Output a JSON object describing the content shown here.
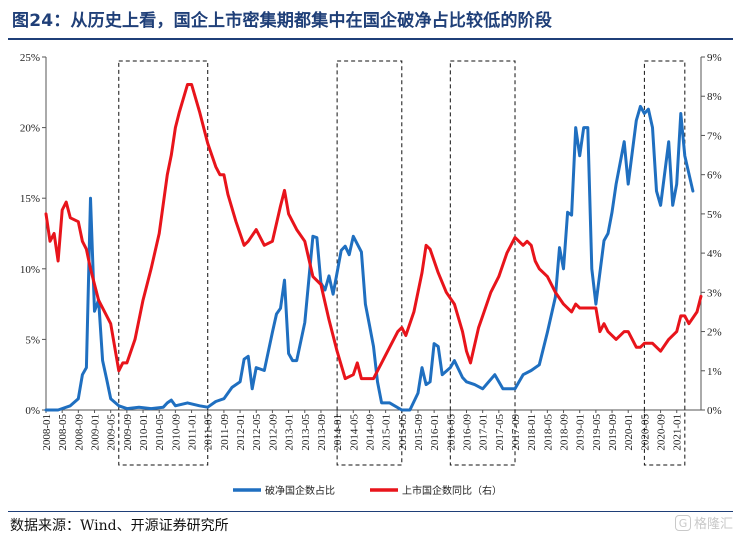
{
  "figure": {
    "title": "图24：从历史上看，国企上市密集期都集中在国企破净占比较低的阶段",
    "source": "数据来源：Wind、开源证券研究所",
    "watermark": "格隆汇",
    "watermark_icon": "g-logo-icon"
  },
  "colors": {
    "blue": "#1f6fc0",
    "red": "#e8141b",
    "axis": "#555555"
  },
  "chart_data": {
    "type": "line",
    "x_tick_labels": [
      "2008-01",
      "2008-05",
      "2008-09",
      "2009-01",
      "2009-05",
      "2009-09",
      "2010-01",
      "2010-05",
      "2010-09",
      "2011-01",
      "2011-05",
      "2011-09",
      "2012-01",
      "2012-05",
      "2012-09",
      "2013-01",
      "2013-05",
      "2013-09",
      "2014-01",
      "2014-05",
      "2014-09",
      "2015-01",
      "2015-05",
      "2015-09",
      "2016-01",
      "2016-05",
      "2016-09",
      "2017-01",
      "2017-05",
      "2017-09",
      "2018-01",
      "2018-05",
      "2018-09",
      "2019-01",
      "2019-05",
      "2019-09",
      "2020-01",
      "2020-05",
      "2020-09",
      "2021-01"
    ],
    "y_left": {
      "min": 0,
      "max": 25,
      "ticks": [
        0,
        5,
        10,
        15,
        20,
        25
      ],
      "tick_labels": [
        "0%",
        "5%",
        "10%",
        "15%",
        "20%",
        "25%"
      ]
    },
    "y_right": {
      "min": 0,
      "max": 9,
      "ticks": [
        0,
        1,
        2,
        3,
        4,
        5,
        6,
        7,
        8,
        9
      ],
      "tick_labels": [
        "0%",
        "1%",
        "2%",
        "3%",
        "4%",
        "5%",
        "6%",
        "7%",
        "8%",
        "9%"
      ]
    },
    "highlight_periods": [
      {
        "start": "2009-07",
        "end": "2011-05"
      },
      {
        "start": "2014-01",
        "end": "2015-05"
      },
      {
        "start": "2016-05",
        "end": "2017-09"
      },
      {
        "start": "2020-05",
        "end": "2021-03"
      }
    ],
    "series": [
      {
        "name": "破净国企数占比",
        "axis": "left",
        "color": "#1f6fc0",
        "points": [
          [
            "2008-01",
            0
          ],
          [
            "2008-04",
            0
          ],
          [
            "2008-07",
            0.3
          ],
          [
            "2008-09",
            0.8
          ],
          [
            "2008-10",
            2.5
          ],
          [
            "2008-11",
            3
          ],
          [
            "2008-12",
            15
          ],
          [
            "2009-01",
            7
          ],
          [
            "2009-02",
            7.8
          ],
          [
            "2009-03",
            3.5
          ],
          [
            "2009-04",
            2.2
          ],
          [
            "2009-05",
            0.8
          ],
          [
            "2009-07",
            0.3
          ],
          [
            "2009-09",
            0.1
          ],
          [
            "2009-12",
            0.2
          ],
          [
            "2010-03",
            0.1
          ],
          [
            "2010-06",
            0.2
          ],
          [
            "2010-07",
            0.5
          ],
          [
            "2010-08",
            0.7
          ],
          [
            "2010-09",
            0.3
          ],
          [
            "2010-12",
            0.5
          ],
          [
            "2011-03",
            0.3
          ],
          [
            "2011-05",
            0.2
          ],
          [
            "2011-07",
            0.6
          ],
          [
            "2011-09",
            0.8
          ],
          [
            "2011-11",
            1.6
          ],
          [
            "2012-01",
            2
          ],
          [
            "2012-02",
            3.6
          ],
          [
            "2012-03",
            3.8
          ],
          [
            "2012-04",
            1.5
          ],
          [
            "2012-05",
            3
          ],
          [
            "2012-07",
            2.8
          ],
          [
            "2012-09",
            5.5
          ],
          [
            "2012-10",
            6.8
          ],
          [
            "2012-11",
            7.2
          ],
          [
            "2012-12",
            9.2
          ],
          [
            "2013-01",
            4
          ],
          [
            "2013-02",
            3.5
          ],
          [
            "2013-03",
            3.5
          ],
          [
            "2013-05",
            6.2
          ],
          [
            "2013-07",
            12.3
          ],
          [
            "2013-08",
            12.2
          ],
          [
            "2013-09",
            9
          ],
          [
            "2013-10",
            8.5
          ],
          [
            "2013-11",
            9.5
          ],
          [
            "2013-12",
            8.2
          ],
          [
            "2014-02",
            11.3
          ],
          [
            "2014-03",
            11.6
          ],
          [
            "2014-04",
            11
          ],
          [
            "2014-05",
            12.3
          ],
          [
            "2014-07",
            11.2
          ],
          [
            "2014-08",
            7.5
          ],
          [
            "2014-09",
            6
          ],
          [
            "2014-10",
            4.5
          ],
          [
            "2014-11",
            2
          ],
          [
            "2014-12",
            0.5
          ],
          [
            "2015-02",
            0.5
          ],
          [
            "2015-05",
            0
          ],
          [
            "2015-07",
            0
          ],
          [
            "2015-09",
            1.2
          ],
          [
            "2015-10",
            3
          ],
          [
            "2015-11",
            1.8
          ],
          [
            "2015-12",
            2
          ],
          [
            "2016-01",
            4.7
          ],
          [
            "2016-02",
            4.5
          ],
          [
            "2016-03",
            2.5
          ],
          [
            "2016-05",
            3
          ],
          [
            "2016-06",
            3.5
          ],
          [
            "2016-08",
            2.3
          ],
          [
            "2016-09",
            2
          ],
          [
            "2016-11",
            1.8
          ],
          [
            "2017-01",
            1.5
          ],
          [
            "2017-04",
            2.5
          ],
          [
            "2017-06",
            1.5
          ],
          [
            "2017-09",
            1.5
          ],
          [
            "2017-11",
            2.5
          ],
          [
            "2018-01",
            2.8
          ],
          [
            "2018-03",
            3.2
          ],
          [
            "2018-05",
            5.5
          ],
          [
            "2018-07",
            8
          ],
          [
            "2018-08",
            11.5
          ],
          [
            "2018-09",
            10
          ],
          [
            "2018-10",
            14
          ],
          [
            "2018-11",
            13.8
          ],
          [
            "2018-12",
            20
          ],
          [
            "2019-01",
            18
          ],
          [
            "2019-02",
            20
          ],
          [
            "2019-03",
            20
          ],
          [
            "2019-04",
            10
          ],
          [
            "2019-05",
            7.5
          ],
          [
            "2019-07",
            12
          ],
          [
            "2019-08",
            12.5
          ],
          [
            "2019-09",
            14
          ],
          [
            "2019-10",
            16
          ],
          [
            "2019-12",
            19
          ],
          [
            "2020-01",
            16
          ],
          [
            "2020-03",
            20.5
          ],
          [
            "2020-04",
            21.5
          ],
          [
            "2020-05",
            21
          ],
          [
            "2020-06",
            21.3
          ],
          [
            "2020-07",
            20
          ],
          [
            "2020-08",
            15.5
          ],
          [
            "2020-09",
            14.5
          ],
          [
            "2020-11",
            19
          ],
          [
            "2020-12",
            14.5
          ],
          [
            "2021-01",
            16
          ],
          [
            "2021-02",
            21
          ],
          [
            "2021-03",
            18
          ],
          [
            "2021-05",
            15.5
          ]
        ]
      },
      {
        "name": "上市国企数同比（右）",
        "axis": "right",
        "color": "#e8141b",
        "points": [
          [
            "2008-01",
            5
          ],
          [
            "2008-02",
            4.3
          ],
          [
            "2008-03",
            4.5
          ],
          [
            "2008-04",
            3.8
          ],
          [
            "2008-05",
            5.1
          ],
          [
            "2008-06",
            5.3
          ],
          [
            "2008-07",
            4.9
          ],
          [
            "2008-09",
            4.8
          ],
          [
            "2008-10",
            4.3
          ],
          [
            "2008-11",
            4.1
          ],
          [
            "2008-12",
            3.6
          ],
          [
            "2009-02",
            2.8
          ],
          [
            "2009-05",
            2.2
          ],
          [
            "2009-07",
            1
          ],
          [
            "2009-08",
            1.2
          ],
          [
            "2009-09",
            1.2
          ],
          [
            "2009-11",
            1.8
          ],
          [
            "2010-01",
            2.8
          ],
          [
            "2010-03",
            3.6
          ],
          [
            "2010-05",
            4.5
          ],
          [
            "2010-07",
            6
          ],
          [
            "2010-08",
            6.5
          ],
          [
            "2010-09",
            7.2
          ],
          [
            "2010-10",
            7.6
          ],
          [
            "2010-12",
            8.3
          ],
          [
            "2011-01",
            8.3
          ],
          [
            "2011-03",
            7.6
          ],
          [
            "2011-05",
            6.8
          ],
          [
            "2011-07",
            6.2
          ],
          [
            "2011-08",
            6
          ],
          [
            "2011-09",
            6
          ],
          [
            "2011-10",
            5.5
          ],
          [
            "2011-12",
            4.8
          ],
          [
            "2012-02",
            4.2
          ],
          [
            "2012-03",
            4.3
          ],
          [
            "2012-05",
            4.6
          ],
          [
            "2012-07",
            4.2
          ],
          [
            "2012-09",
            4.3
          ],
          [
            "2012-11",
            5.2
          ],
          [
            "2012-12",
            5.6
          ],
          [
            "2013-01",
            5
          ],
          [
            "2013-03",
            4.6
          ],
          [
            "2013-05",
            4.3
          ],
          [
            "2013-07",
            3.4
          ],
          [
            "2013-09",
            3.2
          ],
          [
            "2013-11",
            2.3
          ],
          [
            "2014-01",
            1.5
          ],
          [
            "2014-03",
            0.8
          ],
          [
            "2014-05",
            0.9
          ],
          [
            "2014-06",
            1.2
          ],
          [
            "2014-07",
            0.8
          ],
          [
            "2014-10",
            0.8
          ],
          [
            "2014-12",
            1.2
          ],
          [
            "2015-02",
            1.6
          ],
          [
            "2015-04",
            2
          ],
          [
            "2015-05",
            2.1
          ],
          [
            "2015-06",
            1.9
          ],
          [
            "2015-08",
            2.5
          ],
          [
            "2015-10",
            3.5
          ],
          [
            "2015-11",
            4.2
          ],
          [
            "2015-12",
            4.1
          ],
          [
            "2016-02",
            3.5
          ],
          [
            "2016-04",
            3
          ],
          [
            "2016-06",
            2.7
          ],
          [
            "2016-08",
            2
          ],
          [
            "2016-09",
            1.5
          ],
          [
            "2016-10",
            1.2
          ],
          [
            "2016-12",
            2.1
          ],
          [
            "2017-01",
            2.4
          ],
          [
            "2017-03",
            3
          ],
          [
            "2017-05",
            3.4
          ],
          [
            "2017-07",
            4
          ],
          [
            "2017-09",
            4.4
          ],
          [
            "2017-11",
            4.2
          ],
          [
            "2017-12",
            4.3
          ],
          [
            "2018-01",
            4.2
          ],
          [
            "2018-02",
            3.8
          ],
          [
            "2018-03",
            3.6
          ],
          [
            "2018-05",
            3.4
          ],
          [
            "2018-07",
            3
          ],
          [
            "2018-09",
            2.7
          ],
          [
            "2018-11",
            2.5
          ],
          [
            "2018-12",
            2.7
          ],
          [
            "2019-01",
            2.6
          ],
          [
            "2019-03",
            2.6
          ],
          [
            "2019-05",
            2.6
          ],
          [
            "2019-06",
            2
          ],
          [
            "2019-07",
            2.2
          ],
          [
            "2019-08",
            2
          ],
          [
            "2019-10",
            1.8
          ],
          [
            "2019-12",
            2
          ],
          [
            "2020-01",
            2
          ],
          [
            "2020-03",
            1.6
          ],
          [
            "2020-04",
            1.6
          ],
          [
            "2020-05",
            1.7
          ],
          [
            "2020-07",
            1.7
          ],
          [
            "2020-09",
            1.5
          ],
          [
            "2020-11",
            1.8
          ],
          [
            "2021-01",
            2
          ],
          [
            "2021-02",
            2.4
          ],
          [
            "2021-03",
            2.4
          ],
          [
            "2021-04",
            2.2
          ],
          [
            "2021-06",
            2.5
          ],
          [
            "2021-07",
            2.9
          ]
        ]
      }
    ]
  }
}
